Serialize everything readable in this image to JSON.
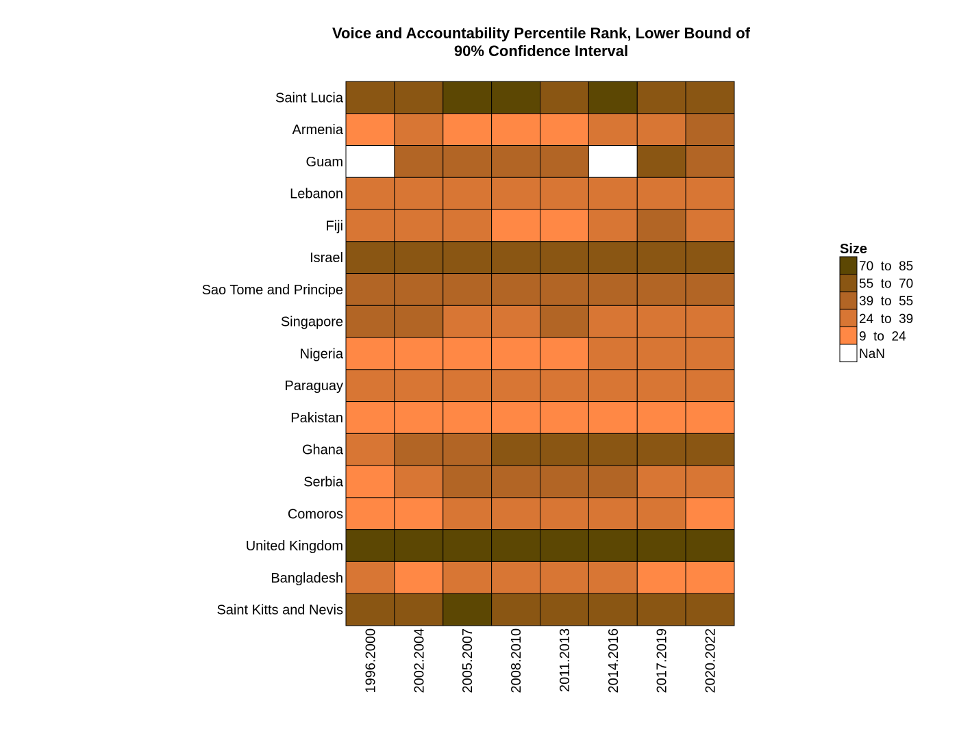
{
  "chart_data": {
    "type": "heatmap",
    "title_lines": [
      "Voice and Accountability Percentile Rank, Lower Bound of",
      "90% Confidence Interval"
    ],
    "columns": [
      "1996.2000",
      "2002.2004",
      "2005.2007",
      "2008.2010",
      "2011.2013",
      "2014.2016",
      "2017.2019",
      "2020.2022"
    ],
    "rows": [
      "Saint Lucia",
      "Armenia",
      "Guam",
      "Lebanon",
      "Fiji",
      "Israel",
      "Sao Tome and Principe",
      "Singapore",
      "Nigeria",
      "Paraguay",
      "Pakistan",
      "Ghana",
      "Serbia",
      "Comoros",
      "United Kingdom",
      "Bangladesh",
      "Saint Kitts and Nevis"
    ],
    "bin_index_note": "values below are legend bin indices: 0 = 70 to 85, 1 = 55 to 70, 2 = 39 to 55, 3 = 24 to 39, 4 = 9 to 24, null = NaN",
    "bins": [
      [
        1,
        1,
        0,
        0,
        1,
        0,
        1,
        1
      ],
      [
        4,
        3,
        4,
        4,
        4,
        3,
        3,
        2
      ],
      [
        null,
        2,
        2,
        2,
        2,
        null,
        1,
        2
      ],
      [
        3,
        3,
        3,
        3,
        3,
        3,
        3,
        3
      ],
      [
        3,
        3,
        3,
        4,
        4,
        3,
        2,
        3
      ],
      [
        1,
        1,
        1,
        1,
        1,
        1,
        1,
        1
      ],
      [
        2,
        2,
        2,
        2,
        2,
        2,
        2,
        2
      ],
      [
        2,
        2,
        3,
        3,
        2,
        3,
        3,
        3
      ],
      [
        4,
        4,
        4,
        4,
        4,
        3,
        3,
        3
      ],
      [
        3,
        3,
        3,
        3,
        3,
        3,
        3,
        3
      ],
      [
        4,
        4,
        4,
        4,
        4,
        4,
        4,
        4
      ],
      [
        3,
        2,
        2,
        1,
        1,
        1,
        1,
        1
      ],
      [
        4,
        3,
        2,
        2,
        2,
        2,
        3,
        3
      ],
      [
        4,
        4,
        3,
        3,
        3,
        3,
        3,
        4
      ],
      [
        0,
        0,
        0,
        0,
        0,
        0,
        0,
        0
      ],
      [
        3,
        4,
        3,
        3,
        3,
        3,
        4,
        4
      ],
      [
        1,
        1,
        0,
        1,
        1,
        1,
        1,
        1
      ]
    ],
    "legend": {
      "title": "Size",
      "placement": "right",
      "entries": [
        {
          "label": "70  to  85",
          "color": "#5c4703"
        },
        {
          "label": "55  to  70",
          "color": "#8a5613"
        },
        {
          "label": "39  to  55",
          "color": "#b26525"
        },
        {
          "label": "24  to  39",
          "color": "#d87634"
        },
        {
          "label": "9  to  24",
          "color": "#ff8845"
        },
        {
          "label": "NaN",
          "color": "#ffffff"
        }
      ]
    }
  }
}
